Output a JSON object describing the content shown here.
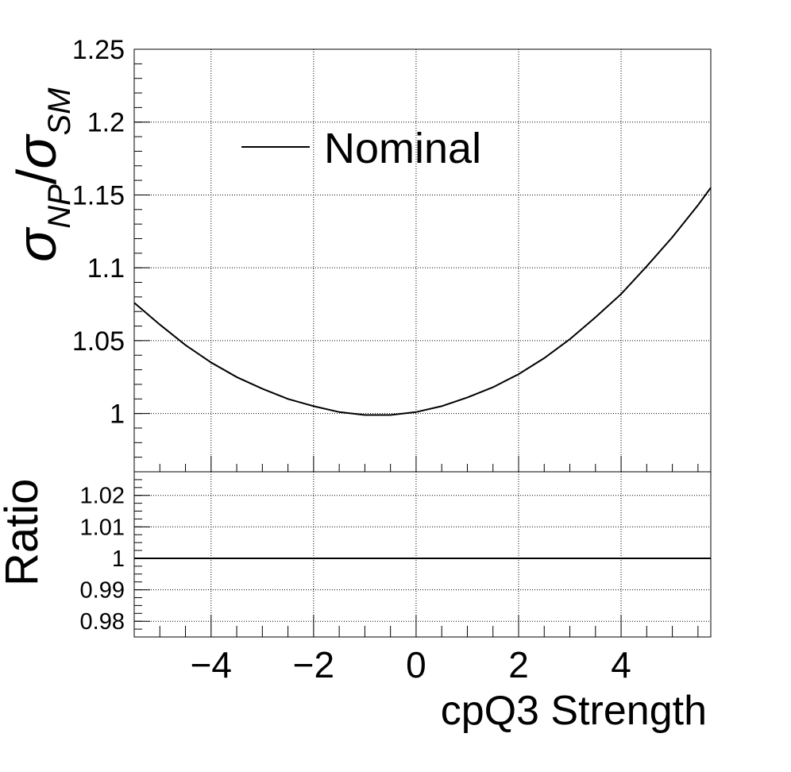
{
  "chart_data": [
    {
      "type": "line",
      "panel": "top",
      "ylabel": {
        "main": "σ",
        "sub1": "NP",
        "slash": "/",
        "main2": "σ",
        "sub2": "SM"
      },
      "xlim": [
        -5.5,
        5.75
      ],
      "ylim": [
        0.96,
        1.25
      ],
      "grid": true,
      "legend_position": "top-center",
      "x_ticks": [
        -4,
        -2,
        0,
        2,
        4
      ],
      "y_ticks": [
        1,
        1.05,
        1.1,
        1.15,
        1.2,
        1.25
      ],
      "y_tick_labels": [
        "1",
        "1.05",
        "1.1",
        "1.15",
        "1.2",
        "1.25"
      ],
      "series": [
        {
          "name": "Nominal",
          "color": "#000000",
          "x": [
            -5.5,
            -5,
            -4.5,
            -4,
            -3.5,
            -3,
            -2.5,
            -2,
            -1.5,
            -1,
            -0.5,
            0,
            0.5,
            1,
            1.5,
            2,
            2.5,
            3,
            3.5,
            4,
            4.5,
            5,
            5.5,
            5.75
          ],
          "y": [
            1.076,
            1.061,
            1.047,
            1.035,
            1.025,
            1.017,
            1.01,
            1.005,
            1.001,
            0.999,
            0.999,
            1.001,
            1.005,
            1.011,
            1.018,
            1.027,
            1.038,
            1.051,
            1.066,
            1.082,
            1.101,
            1.121,
            1.143,
            1.155
          ]
        }
      ]
    },
    {
      "type": "line",
      "panel": "ratio",
      "ylabel": "Ratio",
      "xlabel": "cpQ3 Strength",
      "xlim": [
        -5.5,
        5.75
      ],
      "ylim": [
        0.975,
        1.0275
      ],
      "grid": true,
      "x_ticks": [
        -4,
        -2,
        0,
        2,
        4
      ],
      "x_tick_labels": [
        "−4",
        "−2",
        "0",
        "2",
        "4"
      ],
      "y_ticks": [
        0.98,
        0.99,
        1,
        1.01,
        1.02
      ],
      "y_tick_labels": [
        "0.98",
        "0.99",
        "1",
        "1.01",
        "1.02"
      ],
      "series": [
        {
          "color": "#000000",
          "x": [
            -5.5,
            5.75
          ],
          "y": [
            1.0,
            1.0
          ]
        }
      ]
    }
  ]
}
